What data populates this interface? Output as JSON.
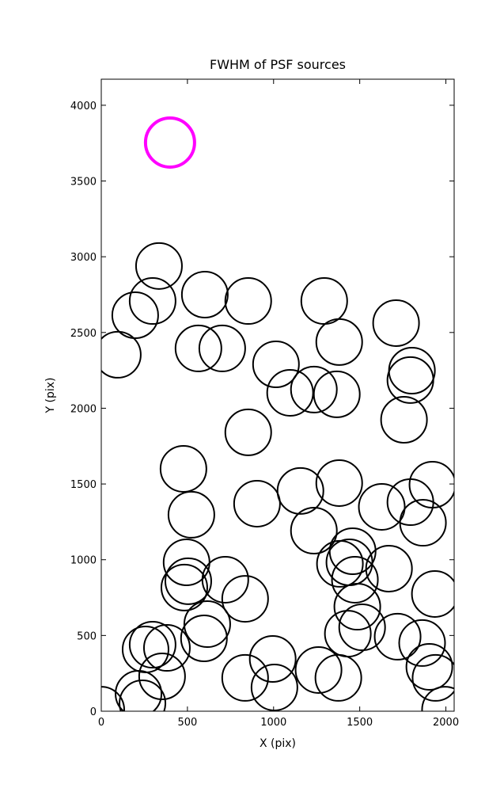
{
  "chart_data": {
    "type": "scatter",
    "title": "FWHM of PSF sources",
    "x_label": "X (pix)",
    "y_label": "Y (pix)",
    "xlim": [
      0,
      2048
    ],
    "ylim": [
      0,
      4172
    ],
    "xticks": [
      0,
      500,
      1000,
      1500,
      2000
    ],
    "yticks": [
      0,
      500,
      1000,
      1500,
      2000,
      2500,
      3000,
      3500,
      4000
    ],
    "series": [
      {
        "color": "#000000",
        "linewidth": 2,
        "x": [
          335,
          298,
          197,
          96,
          601,
          853,
          564,
          702,
          1294,
          1381,
          1711,
          1014,
          1096,
          1234,
          1367,
          1803,
          1794,
          1757,
          853,
          477,
          523,
          904,
          1156,
          1381,
          1628,
          1794,
          1922,
          1867,
          1234,
          1459,
          1440,
          1385,
          1472,
          1670,
          495,
          505,
          482,
          720,
          835,
          615,
          596,
          1486,
          1514,
          1431,
          1720,
          1862,
          1936,
          298,
          257,
          381,
          353,
          216,
          239,
          995,
          835,
          1005,
          1261,
          1376,
          1904,
          1940,
          1995,
          0
        ],
        "y": [
          2939,
          2708,
          2614,
          2353,
          2750,
          2708,
          2395,
          2395,
          2708,
          2437,
          2562,
          2290,
          2102,
          2123,
          2092,
          2248,
          2186,
          1924,
          1841,
          1600,
          1297,
          1370,
          1454,
          1506,
          1349,
          1380,
          1495,
          1244,
          1192,
          1056,
          983,
          973,
          868,
          941,
          983,
          858,
          816,
          868,
          742,
          575,
          481,
          690,
          554,
          512,
          492,
          450,
          774,
          439,
          408,
          418,
          230,
          115,
          52,
          345,
          220,
          157,
          272,
          220,
          293,
          220,
          10,
          10
        ]
      },
      {
        "color": "#ff00ff",
        "linewidth": 4,
        "x": [
          399
        ],
        "y": [
          3754
        ]
      }
    ]
  }
}
